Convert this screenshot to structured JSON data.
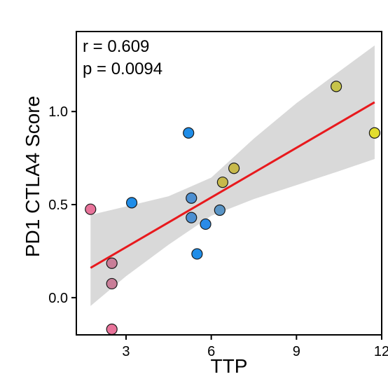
{
  "chart_data": {
    "type": "scatter",
    "title": "",
    "xlabel": "TTP",
    "ylabel": "PD1 CTLA4 Score",
    "xlim": [
      1.25,
      12.0
    ],
    "ylim": [
      -0.2,
      1.43
    ],
    "x_ticks": [
      3,
      6,
      9,
      12
    ],
    "x_tick_labels": [
      "3",
      "6",
      "9",
      "12"
    ],
    "y_ticks": [
      0.0,
      0.5,
      1.0
    ],
    "y_tick_labels": [
      "0.0",
      "0.5",
      "1.0"
    ],
    "grid": false,
    "annotations": [
      "r = 0.609",
      "p = 0.0094"
    ],
    "points": [
      {
        "x": 1.75,
        "y": 0.475,
        "color": "#e8739a"
      },
      {
        "x": 2.5,
        "y": 0.185,
        "color": "#c97e98"
      },
      {
        "x": 2.5,
        "y": 0.075,
        "color": "#c97e98"
      },
      {
        "x": 2.5,
        "y": -0.17,
        "color": "#e8739a"
      },
      {
        "x": 3.2,
        "y": 0.51,
        "color": "#1f8de8"
      },
      {
        "x": 5.2,
        "y": 0.885,
        "color": "#1f8de8"
      },
      {
        "x": 5.3,
        "y": 0.535,
        "color": "#4d8fd1"
      },
      {
        "x": 5.3,
        "y": 0.43,
        "color": "#4d8fd1"
      },
      {
        "x": 5.8,
        "y": 0.395,
        "color": "#2a8be8"
      },
      {
        "x": 5.5,
        "y": 0.235,
        "color": "#1f8de8"
      },
      {
        "x": 6.3,
        "y": 0.47,
        "color": "#5a95c6"
      },
      {
        "x": 6.4,
        "y": 0.62,
        "color": "#c7b94b"
      },
      {
        "x": 6.8,
        "y": 0.695,
        "color": "#c7b94b"
      },
      {
        "x": 10.4,
        "y": 1.135,
        "color": "#c7c44a"
      },
      {
        "x": 11.75,
        "y": 0.885,
        "color": "#e2dd2e"
      }
    ],
    "fit_line": {
      "x": [
        1.75,
        11.75
      ],
      "y": [
        0.16,
        1.05
      ],
      "color": "#e8191d"
    },
    "confidence_band": {
      "color": "#d9d9d9",
      "x": [
        1.75,
        3.0,
        4.5,
        6.0,
        7.5,
        9.0,
        10.5,
        11.75
      ],
      "upper": [
        0.445,
        0.49,
        0.545,
        0.645,
        0.855,
        1.045,
        1.215,
        1.355
      ],
      "lower": [
        -0.045,
        0.115,
        0.285,
        0.44,
        0.53,
        0.605,
        0.68,
        0.745
      ]
    }
  }
}
